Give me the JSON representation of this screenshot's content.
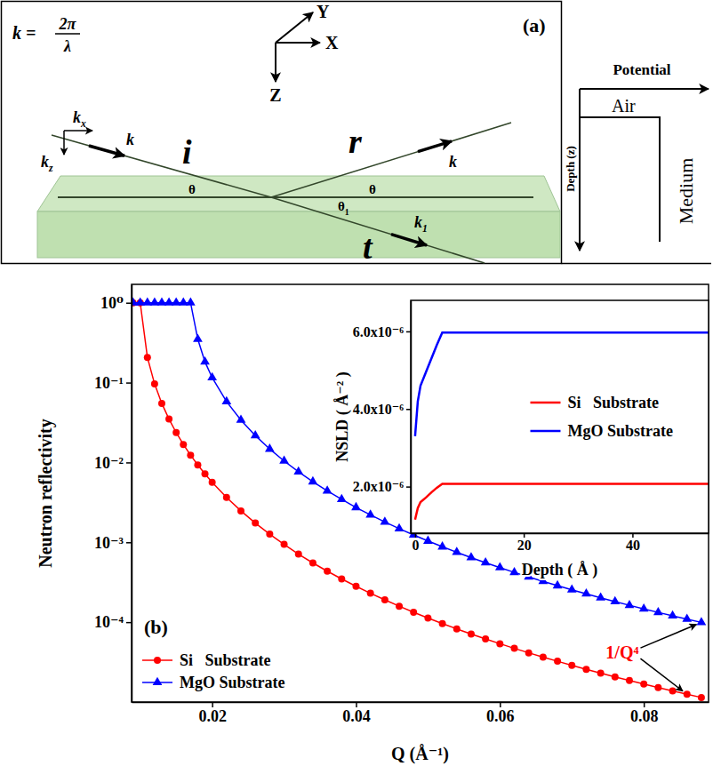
{
  "diagram": {
    "panel_label": "(a)",
    "formula": {
      "lhs": "k =",
      "numerator": "2π",
      "denominator": "λ"
    },
    "axes": {
      "x": "X",
      "y": "Y",
      "z": "Z"
    },
    "beams": {
      "incident": "i",
      "reflected": "r",
      "transmitted": "t"
    },
    "wavevectors": {
      "incident": "k",
      "kx": {
        "base": "k",
        "sub": "x"
      },
      "kz": {
        "base": "k",
        "sub": "z"
      },
      "reflected": "k",
      "transmitted": {
        "base": "k",
        "sub": "1"
      }
    },
    "angles": {
      "incident": "θ",
      "reflected": "θ",
      "transmitted": {
        "base": "θ",
        "sub": "1"
      }
    },
    "potential": {
      "title": "Potential",
      "depth_axis": "Depth (z)",
      "air": "Air",
      "medium": "Medium"
    }
  },
  "chart_data": [
    {
      "type": "line",
      "title": "(b)",
      "x_label": "Q (Å⁻¹)",
      "y_label": "Neutron reflectivity",
      "x": [
        0.009,
        0.01,
        0.011,
        0.012,
        0.013,
        0.014,
        0.015,
        0.016,
        0.017,
        0.018,
        0.019,
        0.02,
        0.022,
        0.024,
        0.026,
        0.028,
        0.03,
        0.032,
        0.034,
        0.036,
        0.038,
        0.04,
        0.042,
        0.044,
        0.046,
        0.048,
        0.05,
        0.052,
        0.054,
        0.056,
        0.058,
        0.06,
        0.062,
        0.064,
        0.066,
        0.068,
        0.07,
        0.072,
        0.074,
        0.076,
        0.078,
        0.08,
        0.082,
        0.084,
        0.086,
        0.088
      ],
      "series": [
        {
          "name": "Si   Substrate",
          "color": "#ff0000",
          "marker": "circle",
          "values": [
            1,
            1,
            0.2072,
            0.0961,
            0.055,
            0.03494,
            0.0237,
            0.01681,
            0.01235,
            0.009317,
            0.007188,
            0.005648,
            0.003652,
            0.002476,
            0.001744,
            0.001266,
            0.0009426,
            0.0007107,
            0.0005518,
            0.0004351,
            0.0003478,
            0.0002814,
            0.0002302,
            0.0001902,
            0.0001585,
            0.0001332,
            0.0001127,
            9.61e-05,
            8.24e-05,
            7.11e-05,
            6.16e-05,
            5.37e-05,
            4.7e-05,
            4.13e-05,
            3.65e-05,
            3.24e-05,
            2.88e-05,
            2.57e-05,
            2.3e-05,
            2.06e-05,
            1.86e-05,
            1.68e-05,
            1.52e-05,
            1.38e-05,
            1.25e-05,
            1.14e-05
          ]
        },
        {
          "name": "MgO Substrate",
          "color": "#0000ff",
          "marker": "triangle",
          "values": [
            1,
            1,
            1,
            1,
            1,
            1,
            1,
            1,
            1,
            0.3508,
            0.1822,
            0.1153,
            0.05795,
            0.03397,
            0.02173,
            0.01474,
            0.010435,
            0.007639,
            0.005743,
            0.004411,
            0.003453,
            0.002732,
            0.002205,
            0.0018,
            0.0014855,
            0.0012373,
            0.0010394,
            0.0008798,
            0.0007501,
            0.0006435,
            0.0005555,
            0.0004819,
            0.0004203,
            0.0003684,
            0.0003242,
            0.0002864,
            0.0002541,
            0.0002263,
            0.0002021,
            0.0001811,
            0.0001628,
            0.0001468,
            0.00013265,
            0.00012019,
            0.00010917,
            9.939e-05
          ]
        }
      ],
      "xlim": [
        0.0088,
        0.089
      ],
      "ylim": [
        1e-05,
        1.7
      ],
      "xticks": [
        0.02,
        0.04,
        0.06,
        0.08
      ],
      "yticks": [
        {
          "value": 1,
          "label": "10⁰"
        },
        {
          "value": 0.1,
          "label": "10⁻¹"
        },
        {
          "value": 0.01,
          "label": "10⁻²"
        },
        {
          "value": 0.001,
          "label": "10⁻³"
        },
        {
          "value": 0.0001,
          "label": "10⁻⁴"
        }
      ],
      "log": "y",
      "grid": false,
      "legend": "lower left",
      "annotations": [
        {
          "text": "1/Q⁴",
          "x": 0.077,
          "y": 3.5e-05
        }
      ]
    },
    {
      "type": "line",
      "x_label": "Depth ( Å )",
      "y_label": "NSLD ( Å⁻² )",
      "x": [
        0,
        0.5,
        1,
        2,
        3,
        4,
        5,
        10,
        20,
        30,
        40,
        50,
        54
      ],
      "series": [
        {
          "name": "Si   Substrate",
          "color": "#ff0000",
          "marker": "none",
          "values": [
            1.15e-06,
            1.45e-06,
            1.6e-06,
            1.72e-06,
            1.85e-06,
            1.97e-06,
            2.07e-06,
            2.07e-06,
            2.07e-06,
            2.07e-06,
            2.07e-06,
            2.07e-06,
            2.07e-06
          ]
        },
        {
          "name": "MgO Substrate",
          "color": "#0000ff",
          "marker": "none",
          "values": [
            3.3e-06,
            4.2e-06,
            4.6e-06,
            4.95e-06,
            5.3e-06,
            5.65e-06,
            5.97e-06,
            5.97e-06,
            5.97e-06,
            5.97e-06,
            5.97e-06,
            5.97e-06,
            5.97e-06
          ]
        }
      ],
      "xlim": [
        -0.8,
        54
      ],
      "ylim": [
        8e-07,
        6.8e-06
      ],
      "xticks": [
        0,
        20,
        40
      ],
      "yticks": [
        {
          "value": 2e-06,
          "label": "2.0x10⁻⁶"
        },
        {
          "value": 4e-06,
          "label": "4.0x10⁻⁶"
        },
        {
          "value": 6e-06,
          "label": "6.0x10⁻⁶"
        }
      ],
      "grid": false,
      "legend": "center right"
    }
  ]
}
